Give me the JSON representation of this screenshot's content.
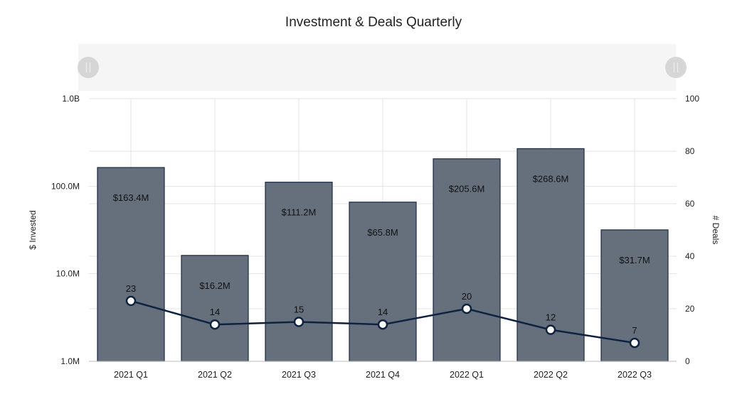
{
  "chart_data": {
    "type": "bar+line",
    "title": "Investment & Deals Quarterly",
    "categories": [
      "2021 Q1",
      "2021 Q2",
      "2021 Q3",
      "2021 Q4",
      "2022 Q1",
      "2022 Q2",
      "2022 Q3"
    ],
    "series": [
      {
        "type": "bar",
        "axis": "left",
        "values": [
          163.4,
          16.2,
          111.2,
          65.8,
          205.6,
          268.6,
          31.7
        ],
        "unit": "M",
        "labels": [
          "$163.4M",
          "$16.2M",
          "$111.2M",
          "$65.8M",
          "$205.6M",
          "$268.6M",
          "$31.7M"
        ],
        "color": "#66707d",
        "border": "#1c2a44"
      },
      {
        "type": "line",
        "axis": "right",
        "values": [
          23,
          14,
          15,
          14,
          20,
          12,
          7
        ],
        "labels": [
          "23",
          "14",
          "15",
          "14",
          "20",
          "12",
          "7"
        ],
        "color": "#0f2340"
      }
    ],
    "y_left": {
      "label": "$ Invested",
      "scale": "log",
      "range_millions": [
        1,
        1000
      ],
      "ticks": [
        {
          "value": 1,
          "label": "1.0M"
        },
        {
          "value": 10,
          "label": "10.0M"
        },
        {
          "value": 100,
          "label": "100.0M"
        },
        {
          "value": 1000,
          "label": "1.0B"
        }
      ]
    },
    "y_right": {
      "label": "# Deals",
      "scale": "linear",
      "range": [
        0,
        100
      ],
      "ticks": [
        {
          "value": 0,
          "label": "0"
        },
        {
          "value": 20,
          "label": "20"
        },
        {
          "value": 40,
          "label": "40"
        },
        {
          "value": 60,
          "label": "60"
        },
        {
          "value": 80,
          "label": "80"
        },
        {
          "value": 100,
          "label": "100"
        }
      ]
    },
    "grid": true,
    "legend": "none",
    "zoom_slider": {
      "range_start": 0,
      "range_end": 1
    }
  }
}
